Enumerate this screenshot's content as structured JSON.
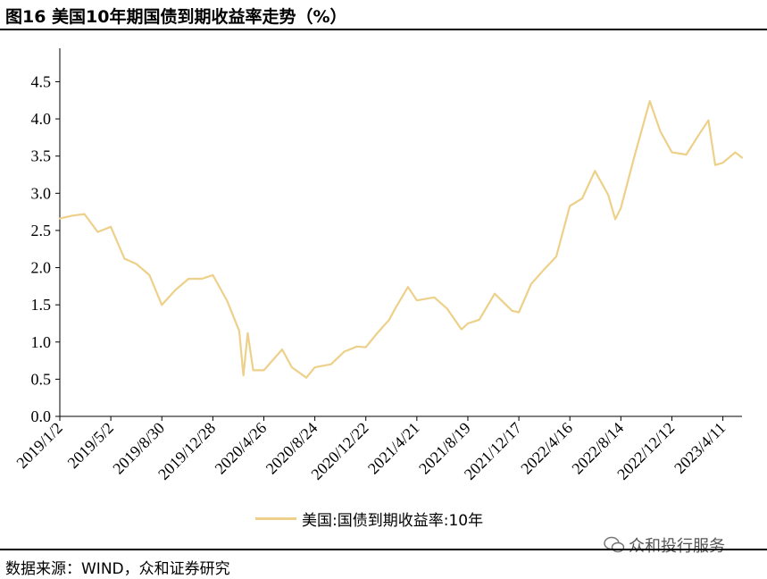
{
  "header": {
    "title": "图16 美国10年期国债到期收益率走势（%）"
  },
  "footer": {
    "source": "数据来源：WIND，众和证券研究",
    "watermark": "众和投行服务"
  },
  "colors": {
    "line": "#EDD089",
    "axis": "#000000"
  },
  "chart_data": {
    "type": "line",
    "title": "",
    "xlabel": "",
    "ylabel": "",
    "ylim": [
      0,
      4.5
    ],
    "yticks": [
      "0.0",
      "0.5",
      "1.0",
      "1.5",
      "2.0",
      "2.5",
      "3.0",
      "3.5",
      "4.0",
      "4.5"
    ],
    "xticks": [
      "2019/1/2",
      "2019/5/2",
      "2019/8/30",
      "2019/12/28",
      "2020/4/26",
      "2020/8/24",
      "2020/12/22",
      "2021/4/21",
      "2021/8/19",
      "2021/12/17",
      "2022/4/16",
      "2022/8/14",
      "2022/12/12",
      "2023/4/11"
    ],
    "grid": false,
    "legend_position": "bottom",
    "series": [
      {
        "name": "美国:国债到期收益率:10年",
        "x": [
          "2019/1/2",
          "2019/2/1",
          "2019/3/1",
          "2019/4/1",
          "2019/5/2",
          "2019/6/3",
          "2019/7/1",
          "2019/8/1",
          "2019/8/30",
          "2019/10/1",
          "2019/11/1",
          "2019/12/2",
          "2019/12/28",
          "2020/1/31",
          "2020/2/28",
          "2020/3/9",
          "2020/3/19",
          "2020/4/1",
          "2020/4/26",
          "2020/6/8",
          "2020/7/1",
          "2020/8/4",
          "2020/8/24",
          "2020/10/1",
          "2020/11/1",
          "2020/12/1",
          "2020/12/22",
          "2021/1/15",
          "2021/2/15",
          "2021/3/1",
          "2021/3/31",
          "2021/4/21",
          "2021/6/1",
          "2021/7/1",
          "2021/8/4",
          "2021/8/19",
          "2021/9/15",
          "2021/10/21",
          "2021/12/1",
          "2021/12/17",
          "2022/1/15",
          "2022/2/15",
          "2022/3/15",
          "2022/4/16",
          "2022/5/15",
          "2022/6/14",
          "2022/7/15",
          "2022/8/1",
          "2022/8/14",
          "2022/9/15",
          "2022/10/21",
          "2022/11/15",
          "2022/12/12",
          "2023/1/15",
          "2023/2/15",
          "2023/3/8",
          "2023/3/24",
          "2023/4/11",
          "2023/5/10",
          "2023/5/26"
        ],
        "values": [
          2.66,
          2.7,
          2.72,
          2.48,
          2.55,
          2.12,
          2.05,
          1.9,
          1.5,
          1.7,
          1.85,
          1.85,
          1.9,
          1.55,
          1.15,
          0.55,
          1.12,
          0.62,
          0.62,
          0.9,
          0.66,
          0.52,
          0.66,
          0.7,
          0.87,
          0.94,
          0.93,
          1.1,
          1.3,
          1.45,
          1.74,
          1.56,
          1.6,
          1.45,
          1.17,
          1.25,
          1.3,
          1.65,
          1.42,
          1.4,
          1.78,
          1.98,
          2.15,
          2.83,
          2.93,
          3.3,
          2.98,
          2.65,
          2.8,
          3.5,
          4.24,
          3.83,
          3.55,
          3.52,
          3.8,
          3.98,
          3.38,
          3.41,
          3.55,
          3.48
        ]
      }
    ]
  }
}
